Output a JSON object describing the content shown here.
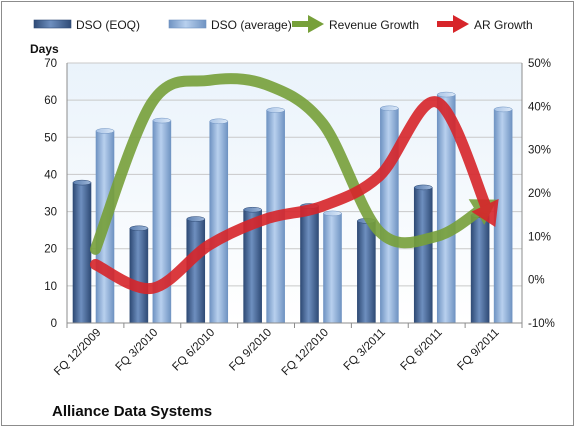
{
  "chart_data": {
    "type": "bar",
    "title": "Alliance Data Systems",
    "ylabel": "Days",
    "ylim": [
      0,
      70
    ],
    "yticks": [
      0,
      10,
      20,
      30,
      40,
      50,
      60,
      70
    ],
    "y2lim": [
      -10,
      50
    ],
    "y2ticks": [
      "-10%",
      "0%",
      "10%",
      "20%",
      "30%",
      "40%",
      "50%"
    ],
    "y2tick_values": [
      -10,
      0,
      10,
      20,
      30,
      40,
      50
    ],
    "categories": [
      "FQ 12/2009",
      "FQ 3/2010",
      "FQ 6/2010",
      "FQ 9/2010",
      "FQ 12/2010",
      "FQ 3/2011",
      "FQ 6/2011",
      "FQ 9/2011"
    ],
    "grid": true,
    "legend_position": "top",
    "series": [
      {
        "name": "DSO (EOQ)",
        "kind": "bar",
        "axis": "left",
        "color": "#4a6b99",
        "values": [
          37.8,
          25.5,
          28,
          30.5,
          31.5,
          27.5,
          36.5,
          29
        ]
      },
      {
        "name": "DSO (average)",
        "kind": "bar",
        "axis": "left",
        "color": "#95b3d7",
        "values": [
          51.7,
          54.5,
          54.3,
          57.3,
          29.5,
          57.8,
          61.5,
          57.5
        ]
      },
      {
        "name": "Revenue Growth",
        "kind": "line",
        "axis": "right",
        "color": "#77a03a",
        "values": [
          7,
          41,
          46,
          45,
          36,
          11,
          10,
          18
        ]
      },
      {
        "name": "AR Growth",
        "kind": "line",
        "axis": "right",
        "color": "#d7252a",
        "values": [
          3.5,
          -2,
          8,
          14,
          17,
          24,
          41,
          13
        ]
      }
    ]
  }
}
